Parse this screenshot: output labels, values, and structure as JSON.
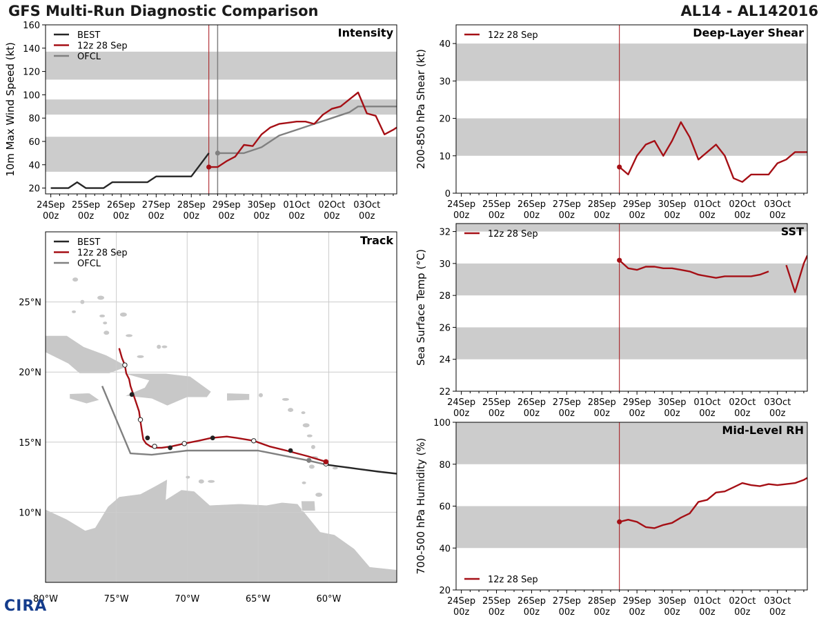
{
  "header": {
    "title": "GFS Multi-Run Diagnostic Comparison",
    "storm": "AL14 - AL142016"
  },
  "legend": {
    "best": "BEST",
    "run": "12z 28 Sep",
    "ofcl": "OFCL"
  },
  "logo": {
    "text": "CIRA"
  },
  "colors": {
    "best": "#262626",
    "run": "#a50f15",
    "ofcl": "#808080",
    "band": "#cccccc",
    "land": "#c8c8c8",
    "grid": "#cccccc"
  },
  "time_axis": {
    "ticks": [
      "24Sep|00z",
      "25Sep|00z",
      "26Sep|00z",
      "27Sep|00z",
      "28Sep|00z",
      "29Sep|00z",
      "30Sep|00z",
      "01Oct|00z",
      "02Oct|00z",
      "03Oct|00z"
    ],
    "tick_days": [
      0,
      1,
      2,
      3,
      4,
      5,
      6,
      7,
      8,
      9
    ],
    "range": [
      -0.15,
      9.85
    ],
    "init_day": 4.5
  },
  "chart_data": [
    {
      "id": "intensity",
      "type": "line",
      "title": "Intensity",
      "ylabel": "10m Max Wind Speed (kt)",
      "ylim": [
        15,
        160
      ],
      "yticks": [
        20,
        40,
        60,
        80,
        100,
        120,
        140,
        160
      ],
      "bands": [
        [
          34,
          64
        ],
        [
          83,
          96
        ],
        [
          113,
          137
        ]
      ],
      "legend": true,
      "ofcl_init_day": 4.75,
      "series": [
        {
          "name": "BEST",
          "key": "best",
          "x": [
            0,
            0.5,
            0.75,
            1,
            1.5,
            1.75,
            2,
            2.5,
            2.75,
            3,
            3.5,
            4,
            4.25,
            4.5
          ],
          "y": [
            20,
            20,
            25,
            20,
            20,
            25,
            25,
            25,
            25,
            30,
            30,
            30,
            40,
            50
          ]
        },
        {
          "name": "12z 28 Sep",
          "key": "run",
          "x": [
            4.5,
            4.75,
            5,
            5.25,
            5.5,
            5.75,
            6,
            6.25,
            6.5,
            6.75,
            7,
            7.25,
            7.5,
            7.75,
            8,
            8.25,
            8.5,
            8.75,
            9,
            9.25,
            9.5,
            9.75,
            9.85
          ],
          "y": [
            38,
            38,
            43,
            47,
            57,
            56,
            66,
            72,
            75,
            76,
            77,
            77,
            75,
            83,
            88,
            90,
            96,
            102,
            84,
            82,
            66,
            70,
            72
          ]
        },
        {
          "name": "OFCL",
          "key": "ofcl",
          "x": [
            4.75,
            5,
            5.5,
            6,
            6.5,
            7,
            7.5,
            8,
            8.5,
            8.75,
            9,
            9.5,
            9.85
          ],
          "y": [
            50,
            50,
            50,
            55,
            65,
            70,
            75,
            80,
            85,
            90,
            90,
            90,
            90
          ]
        }
      ]
    },
    {
      "id": "shear",
      "type": "line",
      "title": "Deep-Layer Shear",
      "ylabel": "200-850 hPa Shear (kt)",
      "ylim": [
        0,
        45
      ],
      "yticks": [
        0,
        10,
        20,
        30,
        40
      ],
      "bands": [
        [
          10,
          20
        ],
        [
          30,
          40
        ]
      ],
      "legend": true,
      "series": [
        {
          "name": "12z 28 Sep",
          "key": "run",
          "x": [
            4.5,
            4.75,
            5,
            5.25,
            5.5,
            5.75,
            6,
            6.25,
            6.5,
            6.75,
            7,
            7.25,
            7.5,
            7.75,
            8,
            8.25,
            8.5,
            8.75,
            9,
            9.25,
            9.5,
            9.75,
            9.85
          ],
          "y": [
            7,
            5,
            10,
            13,
            14,
            10,
            14,
            19,
            15,
            9,
            11,
            13,
            10,
            4,
            3,
            5,
            5,
            5,
            8,
            9,
            11,
            11,
            11
          ]
        }
      ]
    },
    {
      "id": "sst",
      "type": "line",
      "title": "SST",
      "ylabel": "Sea Surface Temp (°C)",
      "ylim": [
        22,
        32.5
      ],
      "yticks": [
        22,
        24,
        26,
        28,
        30,
        32
      ],
      "bands": [
        [
          24,
          26
        ],
        [
          28,
          30
        ],
        [
          32,
          32.5
        ]
      ],
      "legend": true,
      "series": [
        {
          "name": "12z 28 Sep",
          "key": "run",
          "x": [
            4.5,
            4.75,
            5,
            5.25,
            5.5,
            5.75,
            6,
            6.25,
            6.5,
            6.75,
            7,
            7.25,
            7.5,
            7.75,
            8,
            8.25,
            8.5,
            8.75
          ],
          "y": [
            30.2,
            29.7,
            29.6,
            29.8,
            29.8,
            29.7,
            29.7,
            29.6,
            29.5,
            29.3,
            29.2,
            29.1,
            29.2,
            29.2,
            29.2,
            29.2,
            29.3,
            29.5
          ]
        },
        {
          "name": "12z 28 Sep",
          "key": "run",
          "x": [
            9.25,
            9.5,
            9.75,
            9.85
          ],
          "y": [
            29.9,
            28.2,
            30.0,
            30.5
          ]
        }
      ]
    },
    {
      "id": "rh",
      "type": "line",
      "title": "Mid-Level RH",
      "ylabel": "700-500 hPa Humidity (%)",
      "ylim": [
        20,
        100
      ],
      "yticks": [
        20,
        40,
        60,
        80,
        100
      ],
      "bands": [
        [
          40,
          60
        ],
        [
          80,
          100
        ]
      ],
      "legend": true,
      "legend_position": "bottom-left",
      "series": [
        {
          "name": "12z 28 Sep",
          "key": "run",
          "x": [
            4.5,
            4.75,
            5,
            5.25,
            5.5,
            5.75,
            6,
            6.25,
            6.5,
            6.75,
            7,
            7.25,
            7.5,
            7.75,
            8,
            8.25,
            8.5,
            8.75,
            9,
            9.25,
            9.5,
            9.75,
            9.85
          ],
          "y": [
            52.5,
            53.5,
            52.5,
            50,
            49.5,
            51,
            52,
            54.5,
            56.5,
            62,
            63,
            66.5,
            67,
            69,
            71,
            70,
            69.5,
            70.5,
            70,
            70.5,
            71,
            72.5,
            73.5
          ]
        }
      ]
    },
    {
      "id": "track",
      "type": "line",
      "title": "Track",
      "xlim": [
        -80,
        -65,
        -60,
        -55.2
      ],
      "xlim_full": [
        -80,
        -55.2
      ],
      "ylim": [
        5,
        30
      ],
      "xticks": [
        -80,
        -75,
        -70,
        -65,
        -60
      ],
      "xtick_labels": [
        "80°W",
        "75°W",
        "70°W",
        "65°W",
        "60°W"
      ],
      "yticks": [
        10,
        15,
        20,
        25
      ],
      "ytick_labels": [
        "10°N",
        "15°N",
        "20°N",
        "25°N"
      ],
      "legend": true,
      "series": [
        {
          "name": "BEST",
          "key": "best",
          "lon": [
            -55.2,
            -56.5,
            -58.0,
            -59.5,
            -60.2
          ],
          "lat": [
            12.75,
            12.9,
            13.1,
            13.3,
            13.4
          ]
        },
        {
          "name": "12z 28 Sep",
          "key": "run",
          "lon": [
            -60.2,
            -61.5,
            -63.0,
            -64.2,
            -65.3,
            -66.5,
            -67.2,
            -68.3,
            -69.2,
            -70.2,
            -71.1,
            -71.8,
            -72.3,
            -72.6,
            -72.9,
            -73.1,
            -73.2,
            -73.3,
            -73.4,
            -73.6,
            -73.8,
            -74.0,
            -74.1,
            -74.3,
            -74.4,
            -74.6,
            -74.8
          ],
          "lat": [
            13.6,
            14.0,
            14.4,
            14.7,
            15.1,
            15.3,
            15.4,
            15.3,
            15.1,
            14.9,
            14.7,
            14.6,
            14.6,
            14.7,
            14.9,
            15.2,
            15.8,
            16.5,
            17.2,
            17.8,
            18.4,
            19.0,
            19.5,
            19.9,
            20.5,
            21.0,
            21.7
          ]
        },
        {
          "name": "OFCL",
          "key": "ofcl",
          "lon": [
            -60.2,
            -61.5,
            -65,
            -70,
            -72.5,
            -74.0,
            -76.0
          ],
          "lat": [
            13.4,
            13.7,
            14.4,
            14.4,
            14.1,
            14.2,
            19.0
          ]
        }
      ],
      "run_markers_open": [
        [
          -60.2,
          13.45
        ],
        [
          -65.3,
          15.1
        ],
        [
          -70.2,
          14.9
        ],
        [
          -72.3,
          14.7
        ],
        [
          -73.3,
          16.6
        ],
        [
          -74.4,
          20.5
        ]
      ],
      "run_markers_filled": [
        [
          -60.2,
          13.6
        ],
        [
          -62.7,
          14.4
        ],
        [
          -68.2,
          15.3
        ],
        [
          -71.2,
          14.6
        ],
        [
          -72.8,
          15.3
        ],
        [
          -73.9,
          18.4
        ]
      ],
      "ofcl_marker": [
        -61.4,
        13.7
      ]
    }
  ]
}
